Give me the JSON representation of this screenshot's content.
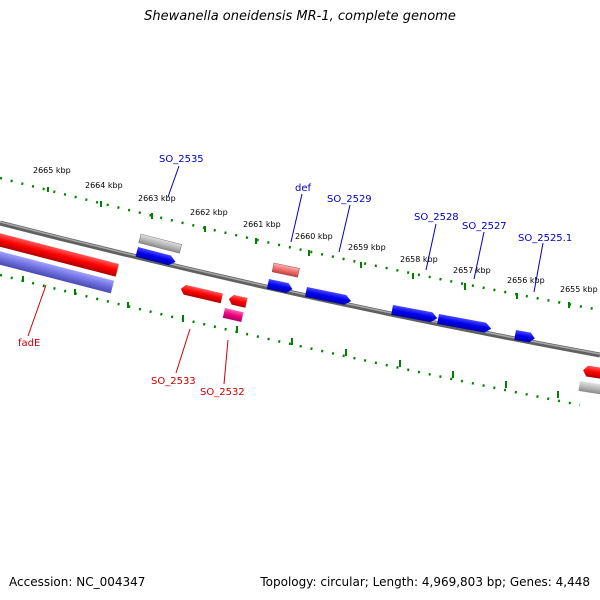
{
  "title": "Shewanella oneidensis MR-1, complete genome",
  "footer": {
    "accession": "Accession: NC_004347",
    "summary": "Topology: circular; Length: 4,969,803 bp; Genes: 4,448"
  },
  "scale_labels": [
    "2665 kbp",
    "2664 kbp",
    "2663 kbp",
    "2662 kbp",
    "2661 kbp",
    "2660 kbp",
    "2659 kbp",
    "2658 kbp",
    "2657 kbp",
    "2656 kbp",
    "2655 kbp"
  ],
  "gene_labels": {
    "top": [
      "SO_2535",
      "def",
      "SO_2529",
      "SO_2528",
      "SO_2527",
      "SO_2525.1"
    ],
    "bottom": [
      "fadE",
      "SO_2533",
      "SO_2532"
    ]
  },
  "colors": {
    "forward_gene": "#0000ff",
    "reverse_gene": "#ff0000",
    "rna_gene": "#e8006e",
    "pseudo_gene": "#b0b0b0",
    "selected_gene": "#7070ff",
    "backbone": "#808080",
    "tick": "#008000",
    "forward_label": "#0000c0",
    "reverse_label": "#cc0000"
  }
}
